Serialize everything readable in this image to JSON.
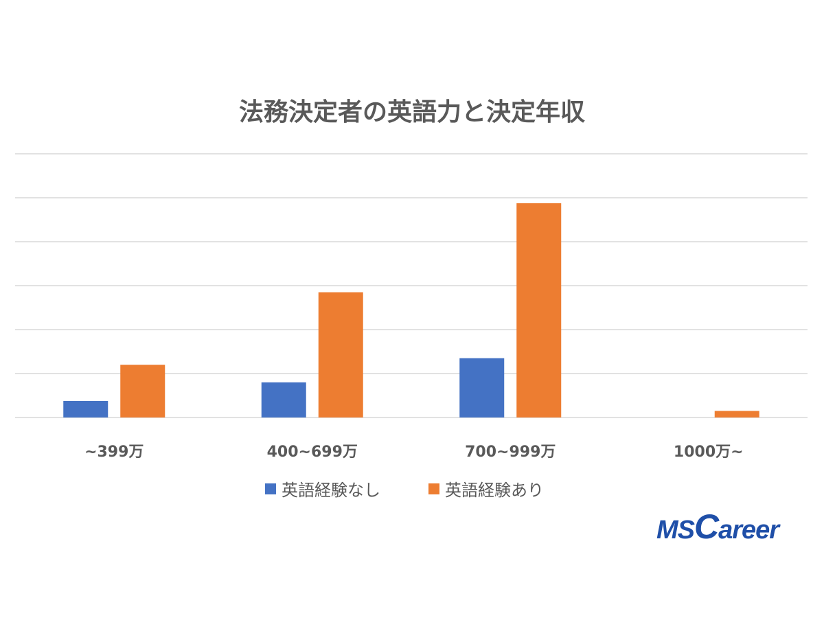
{
  "chart_data": {
    "type": "bar",
    "title": "法務決定者の英語力と決定年収",
    "categories": [
      "~399万",
      "400~699万",
      "700~999万",
      "1000万~"
    ],
    "series": [
      {
        "name": "英語経験なし",
        "color": "#4472C4",
        "values": [
          1.5,
          3.2,
          5.4,
          0
        ]
      },
      {
        "name": "英語経験あり",
        "color": "#ED7D31",
        "values": [
          4.8,
          11.4,
          19.5,
          0.6
        ]
      }
    ],
    "ylim": [
      0,
      24
    ],
    "gridlines": [
      0,
      4,
      8,
      12,
      16,
      20,
      24
    ],
    "grid": true,
    "y_tick_labels_visible": false,
    "legend_position": "bottom"
  },
  "logo": {
    "prefix": "MS",
    "c": "C",
    "rest": "areer",
    "color": "#1f4fa8"
  }
}
